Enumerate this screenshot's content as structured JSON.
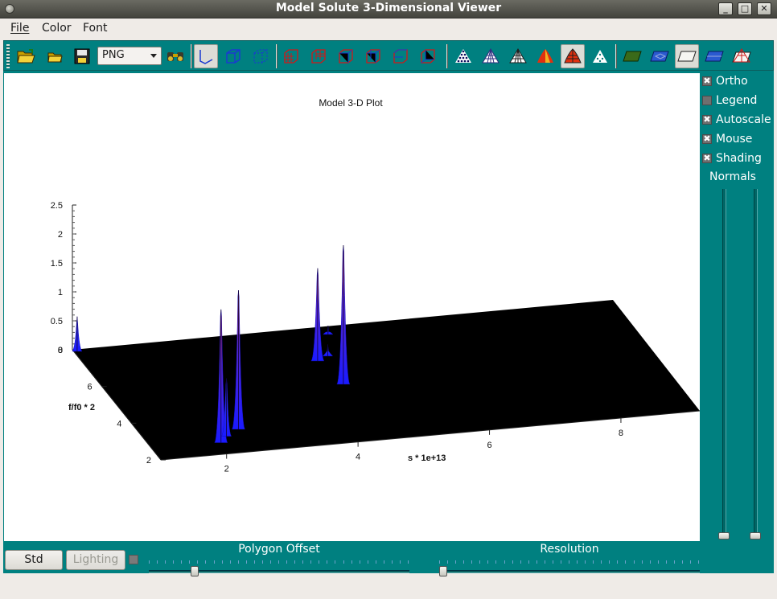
{
  "window": {
    "title": "Model Solute 3-Dimensional Viewer",
    "buttons": {
      "minimize": "_",
      "maximize": "□",
      "close": "✕"
    }
  },
  "menubar": {
    "items": [
      {
        "label": "File",
        "underline": "F"
      },
      {
        "label": "Color",
        "underline": "C"
      },
      {
        "label": "Font",
        "underline": "F"
      }
    ]
  },
  "toolbar": {
    "format_select": {
      "value": "PNG"
    },
    "icons": [
      "open-folder-icon",
      "open-file-icon",
      "save-disk-icon",
      "binoculars-icon",
      "axes-frame-icon",
      "box-frame-icon",
      "box-frame-dotted-icon",
      "grid-box-1-icon",
      "grid-box-2-icon",
      "grid-box-3-icon",
      "grid-box-4-icon",
      "grid-box-5-icon",
      "grid-box-6-icon",
      "points-mesh-icon",
      "wireframe-mesh-icon",
      "hidden-line-mesh-icon",
      "filled-surface-icon",
      "filled-mesh-icon",
      "dots-surface-icon",
      "floor-color-icon",
      "floor-mesh-icon",
      "floor-empty-icon",
      "floor-filled-icon",
      "floor-full-mesh-icon"
    ]
  },
  "plot": {
    "title": "Model 3-D Plot",
    "xlabel": "s * 1e+13",
    "ylabel": "f/f0 * 2",
    "z_ticks": [
      "2.5",
      "2",
      "1.5",
      "1",
      "0.5",
      "0"
    ],
    "x_ticks": [
      "2",
      "4",
      "6",
      "8"
    ],
    "y_ticks": [
      "8",
      "6",
      "4",
      "2"
    ]
  },
  "side_panel": {
    "checkboxes": [
      {
        "label": "Ortho",
        "checked": true
      },
      {
        "label": "Legend",
        "checked": false
      },
      {
        "label": "Autoscale",
        "checked": true
      },
      {
        "label": "Mouse",
        "checked": true
      },
      {
        "label": "Shading",
        "checked": true
      }
    ],
    "normals_label": "Normals"
  },
  "bottom": {
    "std_button": "Std",
    "lighting_button": "Lighting",
    "polygon_offset_label": "Polygon Offset",
    "resolution_label": "Resolution"
  },
  "colors": {
    "teal": "#008080",
    "plot_bg": "#ffffff",
    "floor": "#000000",
    "peak_base": "#1a1aff",
    "peak_tip": "#d03040"
  },
  "chart_data": {
    "type": "surface",
    "title": "Model 3-D Plot",
    "xlabel": "s * 1e+13",
    "ylabel": "f/f0 * 2",
    "x_ticks": [
      2,
      4,
      6,
      8
    ],
    "y_ticks": [
      2,
      4,
      6,
      8
    ],
    "z_ticks": [
      0,
      0.5,
      1,
      1.5,
      2,
      2.5
    ],
    "zlim": [
      0,
      2.5
    ],
    "peaks": [
      {
        "s": 1.05,
        "f": 7.9,
        "z": 0.6
      },
      {
        "s": 2.05,
        "f": 2.6,
        "z": 2.3
      },
      {
        "s": 2.2,
        "f": 2.9,
        "z": 1.0
      },
      {
        "s": 2.45,
        "f": 3.2,
        "z": 2.4
      },
      {
        "s": 4.35,
        "f": 6.3,
        "z": 1.6
      },
      {
        "s": 4.45,
        "f": 5.0,
        "z": 2.4
      },
      {
        "s": 4.55,
        "f": 6.5,
        "z": 0.2
      },
      {
        "s": 4.8,
        "f": 7.6,
        "z": 0.15
      }
    ]
  }
}
